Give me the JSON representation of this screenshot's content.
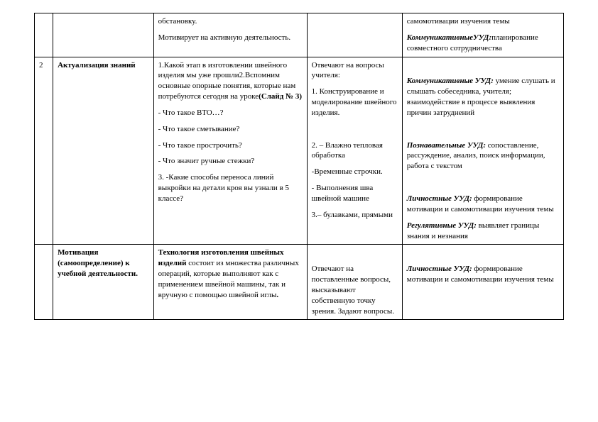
{
  "rows": {
    "r0": {
      "num": "",
      "stage": "",
      "teacher_p1": "обстановку.",
      "teacher_p2": "Мотивирует на активную деятельность.",
      "student": "",
      "uud_p1": "самомотивации изучения темы",
      "uud_p2a": "КоммуникативныеУУД:",
      "uud_p2b": "планирование совместного сотрудничества"
    },
    "r1": {
      "num": "2",
      "stage": "Актуализация знаний",
      "teacher_p1a": "1.Какой этап в изготовлении швейного изделия мы уже прошли2.Вспомним основные опорные понятия, которые нам потребуются сегодня на уроке",
      "teacher_p1b": "(Слайд № 3)",
      "teacher_p2": "- Что такое ВТО…?",
      "teacher_p3": "- Что такое сметывание?",
      "teacher_p4": "- Что такое прострочить?",
      "teacher_p5": "- Что значит ручные стежки?",
      "teacher_p6": "3. -Какие способы переноса линий выкройки на детали кроя вы узнали в 5 классе?",
      "student_p1": "Отвечают на вопросы учителя:",
      "student_p2": "1. Конструирование и моделирование швейного изделия.",
      "student_p3": "2. – Влажно тепловая обработка",
      "student_p4": "-Временные строчки.",
      "student_p5": "- Выполнения шва швейной машине",
      "student_p6": "3.– булавками, прямыми",
      "uud_p1a": "Коммуникативные УУД:",
      "uud_p1b": " умение слушать и слышать собеседника, учителя; взаимодействие в процессе выявления причин затруднений",
      "uud_p2a": "Познавательные УУД:",
      "uud_p2b": " сопоставление, рассуждение, анализ, поиск информации, работа с текстом",
      "uud_p3a": "Личностные УУД:",
      "uud_p3b": " формирование мотивации и самомотивации изучения темы",
      "uud_p4a": "Регулятивные УУД:",
      "uud_p4b": " выявляет границы знания и незнания"
    },
    "r2": {
      "num": "",
      "stage": "Мотивация (самоопределение) к учебной деятельности.",
      "teacher_a": "Технология изготовления швейных изделий ",
      "teacher_b": "состоит из множества различных операций, которые выполняют как с применением швейной машины, так и вручную с помощью швейной иглы",
      "teacher_c": ".",
      "student": "Отвечают на поставленные вопросы, высказывают собственную точку зрения. Задают вопросы.",
      "uud_a": "Личностные УУД:",
      "uud_b": " формирование мотивации и самомотивации изучения темы"
    }
  }
}
